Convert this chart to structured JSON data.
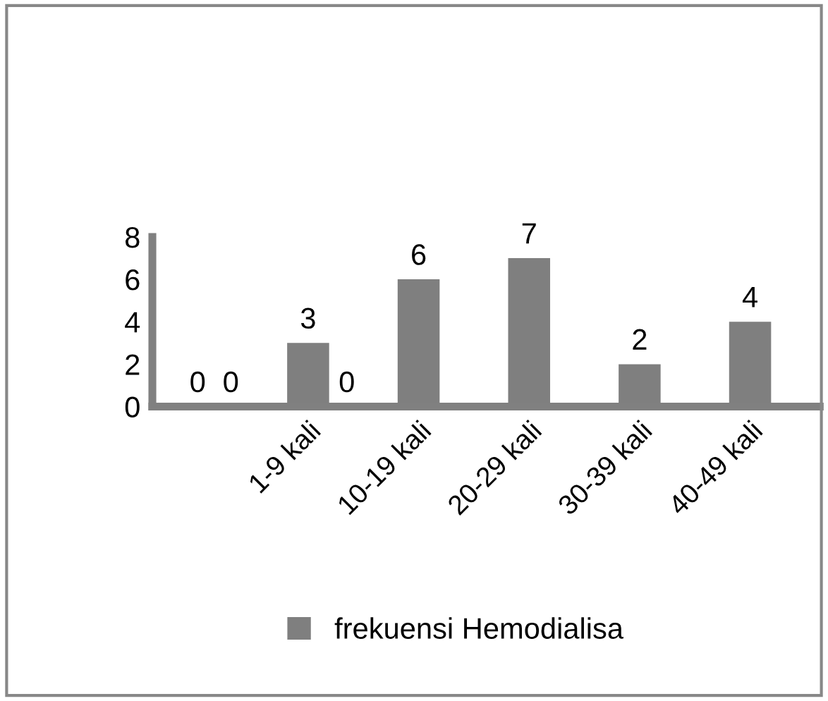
{
  "chart_data": {
    "type": "bar",
    "categories": [
      null,
      "1-9 kali",
      "10-19 kali",
      "20-29 kali",
      "30-39 kali",
      "40-49 kali"
    ],
    "series": [
      {
        "name": "frekuensi Hemodialisa",
        "color": "#7f7f7f",
        "values": [
          0,
          3,
          6,
          7,
          2,
          4
        ]
      }
    ],
    "annotations": [
      "0",
      "0"
    ],
    "data_labels": true,
    "ylim": [
      0,
      8
    ],
    "yticks": [
      0,
      2,
      4,
      6,
      8
    ],
    "grid": false,
    "legend": "bottom"
  }
}
